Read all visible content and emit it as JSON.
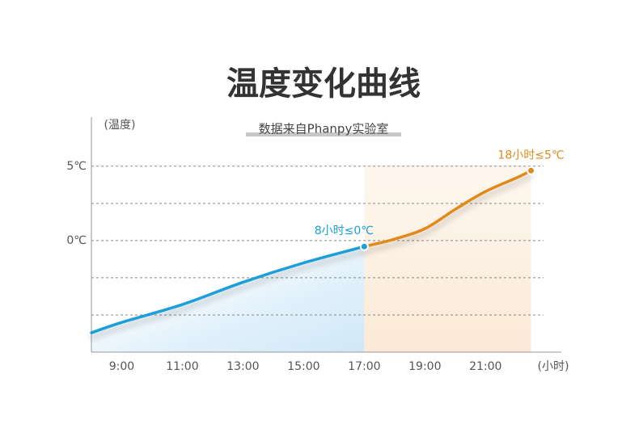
{
  "chart_data": {
    "type": "line",
    "title": "温度变化曲线",
    "subtitle": "数据来自Phanpy实验室",
    "y_label": "(温度)",
    "x_label": "(小时)",
    "x": [
      8,
      9,
      11,
      13,
      15,
      17,
      18,
      19,
      20,
      21,
      22,
      22.5
    ],
    "series": [
      {
        "name": "≤0℃",
        "color": "#1a9fd9",
        "values": [
          -6.2,
          -5.5,
          -4.3,
          -2.8,
          -1.5,
          -0.4,
          null,
          null,
          null,
          null,
          null,
          null
        ]
      },
      {
        "name": "≤5℃",
        "color": "#e08a1e",
        "values": [
          null,
          null,
          null,
          null,
          null,
          -0.4,
          0.1,
          0.8,
          2.1,
          3.3,
          4.2,
          4.7
        ]
      }
    ],
    "annotations": [
      {
        "text": "8小时≤0℃",
        "x": 17,
        "y": -0.4,
        "color": "#1a9fd9"
      },
      {
        "text": "18小时≤5℃",
        "x": 22.5,
        "y": 4.7,
        "color": "#e08a1e"
      }
    ],
    "xlim": [
      8,
      23.5
    ],
    "ylim": [
      -7.5,
      8.3
    ],
    "xticks": [
      {
        "value": 9,
        "label": "9:00"
      },
      {
        "value": 11,
        "label": "11:00"
      },
      {
        "value": 13,
        "label": "13:00"
      },
      {
        "value": 15,
        "label": "15:00"
      },
      {
        "value": 17,
        "label": "17:00"
      },
      {
        "value": 19,
        "label": "19:00"
      },
      {
        "value": 21,
        "label": "21:00"
      }
    ],
    "yticks": [
      {
        "value": 5,
        "label": "5℃"
      },
      {
        "value": 0,
        "label": "0℃"
      }
    ],
    "minor_yticks": [
      2.5,
      -2.5,
      -5
    ],
    "grid": true
  }
}
